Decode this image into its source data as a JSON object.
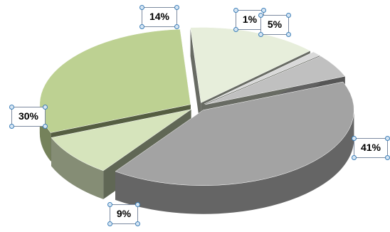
{
  "chart_data": {
    "type": "pie",
    "title": "",
    "legend": "none",
    "slices": [
      {
        "label": "41%",
        "value": 41,
        "color": "#a3a3a3"
      },
      {
        "label": "9%",
        "value": 9,
        "color": "#d6e4bc"
      },
      {
        "label": "30%",
        "value": 30,
        "color": "#bdd192"
      },
      {
        "label": "14%",
        "value": 14,
        "color": "#e7eedb"
      },
      {
        "label": "1%",
        "value": 1,
        "color": "#d9d9d9"
      },
      {
        "label": "5%",
        "value": 5,
        "color": "#c0c0c0"
      }
    ]
  }
}
